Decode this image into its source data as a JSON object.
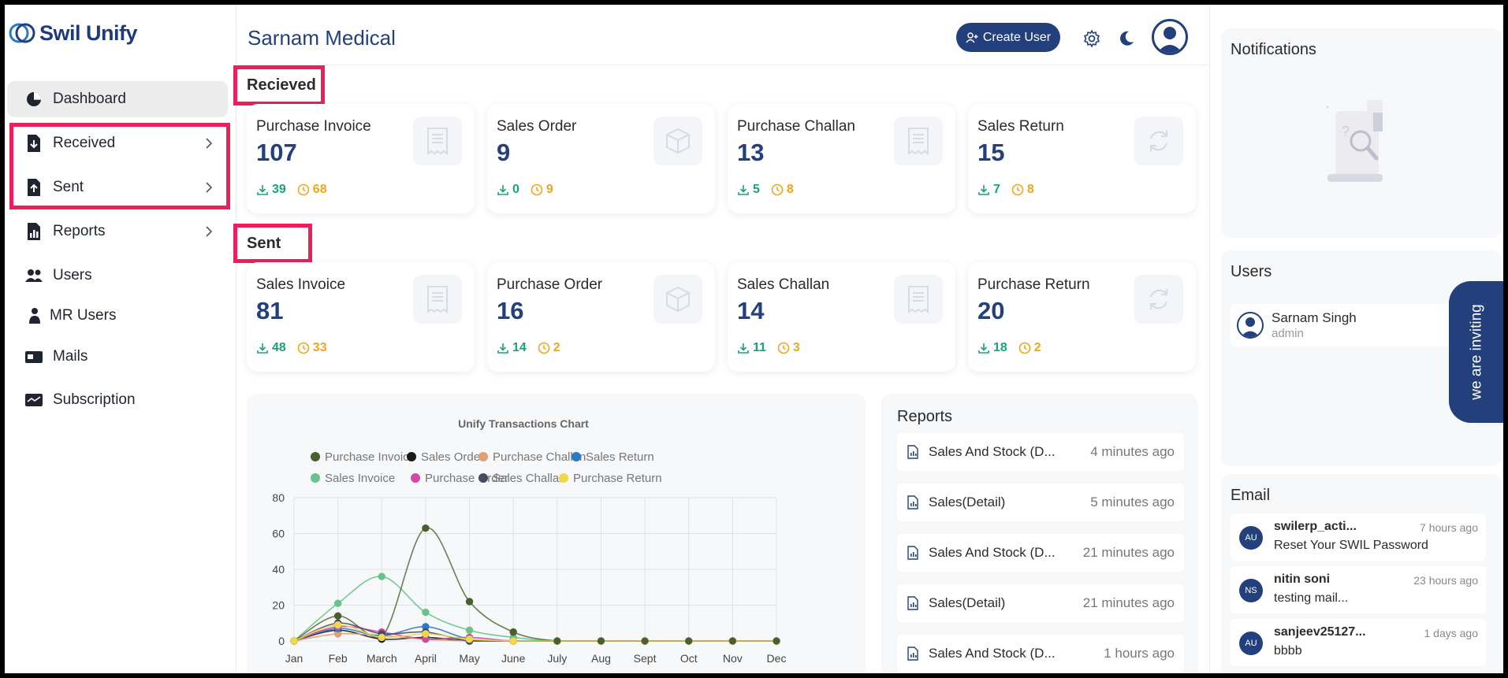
{
  "brand": {
    "name": "Swil Unify"
  },
  "sidebar": {
    "items": [
      {
        "label": "Dashboard",
        "icon": "pie-chart-icon"
      },
      {
        "label": "Received",
        "icon": "file-download-icon"
      },
      {
        "label": "Sent",
        "icon": "file-upload-icon"
      },
      {
        "label": "Reports",
        "icon": "report-chart-icon"
      },
      {
        "label": "Users",
        "icon": "users-icon"
      },
      {
        "label": "MR Users",
        "icon": "mr-user-icon"
      },
      {
        "label": "Mails",
        "icon": "mailbox-icon"
      },
      {
        "label": "Subscription",
        "icon": "card-icon"
      }
    ]
  },
  "header": {
    "title": "Sarnam Medical",
    "create_user_label": "Create User"
  },
  "received": {
    "label": "Recieved",
    "cards": [
      {
        "title": "Purchase Invoice",
        "value": "107",
        "downloaded": "39",
        "pending": "68",
        "icon": "receipt-icon"
      },
      {
        "title": "Sales Order",
        "value": "9",
        "downloaded": "0",
        "pending": "9",
        "icon": "box-icon"
      },
      {
        "title": "Purchase Challan",
        "value": "13",
        "downloaded": "5",
        "pending": "8",
        "icon": "receipt-icon"
      },
      {
        "title": "Sales Return",
        "value": "15",
        "downloaded": "7",
        "pending": "8",
        "icon": "refresh-icon"
      }
    ]
  },
  "sent": {
    "label": "Sent",
    "cards": [
      {
        "title": "Sales Invoice",
        "value": "81",
        "downloaded": "48",
        "pending": "33",
        "icon": "receipt-icon"
      },
      {
        "title": "Purchase Order",
        "value": "16",
        "downloaded": "14",
        "pending": "2",
        "icon": "box-icon"
      },
      {
        "title": "Sales Challan",
        "value": "14",
        "downloaded": "11",
        "pending": "3",
        "icon": "receipt-icon"
      },
      {
        "title": "Purchase Return",
        "value": "20",
        "downloaded": "18",
        "pending": "2",
        "icon": "refresh-icon"
      }
    ]
  },
  "chart_data": {
    "type": "line",
    "title": "Unify Transactions Chart",
    "categories": [
      "Jan",
      "Feb",
      "March",
      "April",
      "May",
      "June",
      "July",
      "Aug",
      "Sept",
      "Oct",
      "Nov",
      "Dec"
    ],
    "ylim": [
      0,
      80
    ],
    "yticks": [
      "0",
      "20",
      "40",
      "60",
      "80"
    ],
    "grid": true,
    "legend_position": "top",
    "series": [
      {
        "name": "Purchase Invoice",
        "color": "#4a5f2e",
        "values": [
          0,
          14,
          2,
          63,
          22,
          5,
          0,
          0,
          0,
          0,
          0,
          0
        ]
      },
      {
        "name": "Sales Order",
        "color": "#1a1a1a",
        "values": [
          0,
          6,
          1,
          2,
          0,
          0,
          0,
          0,
          0,
          0,
          0,
          0
        ]
      },
      {
        "name": "Purchase Challan",
        "color": "#e0a070",
        "values": [
          0,
          4,
          3,
          1,
          0,
          0,
          0,
          0,
          0,
          0,
          0,
          0
        ]
      },
      {
        "name": "Sales Return",
        "color": "#2a78c8",
        "values": [
          0,
          7,
          3,
          8,
          1,
          0,
          0,
          0,
          0,
          0,
          0,
          0
        ]
      },
      {
        "name": "Sales Invoice",
        "color": "#66c48a",
        "values": [
          0,
          21,
          36,
          16,
          6,
          2,
          0,
          0,
          0,
          0,
          0,
          0
        ]
      },
      {
        "name": "Purchase Order",
        "color": "#d04aa0",
        "values": [
          0,
          8,
          5,
          1,
          2,
          0,
          0,
          0,
          0,
          0,
          0,
          0
        ]
      },
      {
        "name": "Sales Challan",
        "color": "#4a4a5e",
        "values": [
          0,
          10,
          4,
          5,
          0,
          0,
          0,
          0,
          0,
          0,
          0,
          0
        ]
      },
      {
        "name": "Purchase Return",
        "color": "#f0d84a",
        "values": [
          0,
          9,
          2,
          4,
          1,
          0,
          0,
          0,
          0,
          0,
          0,
          0
        ]
      }
    ]
  },
  "reports": {
    "title": "Reports",
    "items": [
      {
        "name": "Sales And Stock (D...",
        "time": "4 minutes ago"
      },
      {
        "name": "Sales(Detail)",
        "time": "5 minutes ago"
      },
      {
        "name": "Sales And Stock (D...",
        "time": "21 minutes ago"
      },
      {
        "name": "Sales(Detail)",
        "time": "21 minutes ago"
      },
      {
        "name": "Sales And Stock (D...",
        "time": "1 hours ago"
      }
    ]
  },
  "notifications": {
    "title": "Notifications"
  },
  "users": {
    "title": "Users",
    "items": [
      {
        "name": "Sarnam Singh",
        "role": "admin"
      }
    ]
  },
  "email": {
    "title": "Email",
    "items": [
      {
        "initials": "AU",
        "from": "swilerp_acti...",
        "time": "7 hours ago",
        "subject": "Reset Your SWIL Password"
      },
      {
        "initials": "NS",
        "from": "nitin soni",
        "time": "23 hours ago",
        "subject": "testing mail..."
      },
      {
        "initials": "AU",
        "from": "sanjeev25127...",
        "time": "1 days ago",
        "subject": "bbbb"
      }
    ]
  },
  "invite": {
    "label": "we are inviting"
  },
  "colors": {
    "brand": "#23407d",
    "download": "#1aa37a",
    "pending": "#f0a61c",
    "highlight": "#ea1f5b"
  }
}
